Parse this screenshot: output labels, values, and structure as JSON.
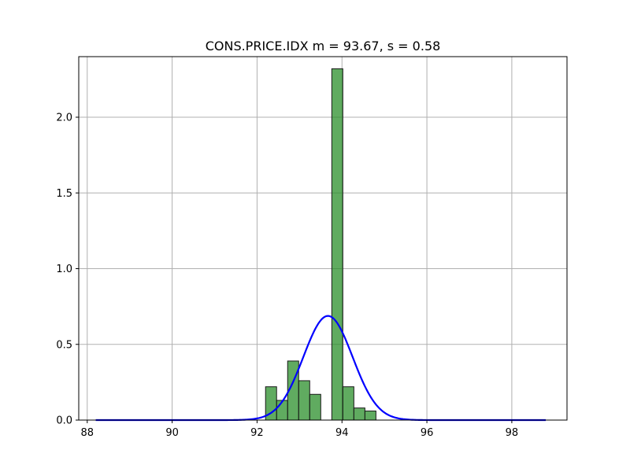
{
  "chart_data": {
    "type": "bar",
    "title": "CONS.PRICE.IDX  m = 93.67,  s = 0.58",
    "xlabel": "",
    "ylabel": "",
    "xlim": [
      87.8,
      99.3
    ],
    "ylim": [
      0,
      2.4
    ],
    "xticks": [
      88,
      90,
      92,
      94,
      96,
      98
    ],
    "yticks": [
      0.0,
      0.5,
      1.0,
      1.5,
      2.0
    ],
    "grid": true,
    "histogram": {
      "name": "",
      "color": "#228b22",
      "bin_width": 0.26,
      "bins": [
        {
          "x0": 92.2,
          "x1": 92.46,
          "value": 0.22
        },
        {
          "x0": 92.46,
          "x1": 92.72,
          "value": 0.13
        },
        {
          "x0": 92.72,
          "x1": 92.98,
          "value": 0.39
        },
        {
          "x0": 92.98,
          "x1": 93.24,
          "value": 0.26
        },
        {
          "x0": 93.24,
          "x1": 93.5,
          "value": 0.17
        },
        {
          "x0": 93.5,
          "x1": 93.76,
          "value": 0.0
        },
        {
          "x0": 93.76,
          "x1": 94.02,
          "value": 2.32
        },
        {
          "x0": 94.02,
          "x1": 94.28,
          "value": 0.22
        },
        {
          "x0": 94.28,
          "x1": 94.54,
          "value": 0.08
        },
        {
          "x0": 94.54,
          "x1": 94.8,
          "value": 0.06
        }
      ]
    },
    "normal_curve": {
      "name": "",
      "color": "#0000ff",
      "mean": 93.67,
      "std": 0.58,
      "x_range": [
        88.2,
        98.8
      ]
    }
  }
}
